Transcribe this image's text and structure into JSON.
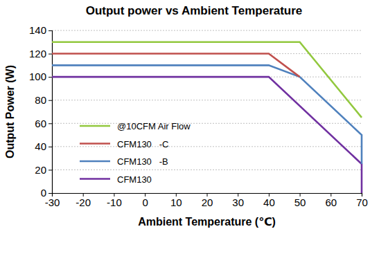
{
  "chart_data": {
    "type": "line",
    "title": "Output power vs Ambient Temperature",
    "x_label": "Ambient Temperature (℃)",
    "y_label": "Output Power (W)",
    "series": [
      {
        "name": "@10CFM Air Flow",
        "color": "#92c83e",
        "x": [
          -30,
          50,
          70
        ],
        "values": [
          130,
          130,
          65
        ]
      },
      {
        "name": "CFM130   -C",
        "color": "#c0504d",
        "x": [
          -30,
          40,
          50
        ],
        "values": [
          120,
          120,
          100
        ]
      },
      {
        "name": "CFM130   -B",
        "color": "#4f81bd",
        "x": [
          -30,
          40,
          50,
          70,
          70
        ],
        "values": [
          110,
          110,
          100,
          50,
          25
        ]
      },
      {
        "name": "CFM130",
        "color": "#7030a0",
        "x": [
          -30,
          40,
          70,
          70
        ],
        "values": [
          100,
          100,
          25,
          0
        ]
      }
    ],
    "xlim": [
      -30,
      70
    ],
    "xticks": [
      -30,
      -20,
      -10,
      0,
      10,
      20,
      30,
      40,
      50,
      60,
      70
    ],
    "ylim": [
      0,
      140
    ],
    "yticks": [
      0,
      20,
      40,
      60,
      80,
      100,
      120,
      140
    ],
    "grid": true,
    "legend": "lower left"
  }
}
